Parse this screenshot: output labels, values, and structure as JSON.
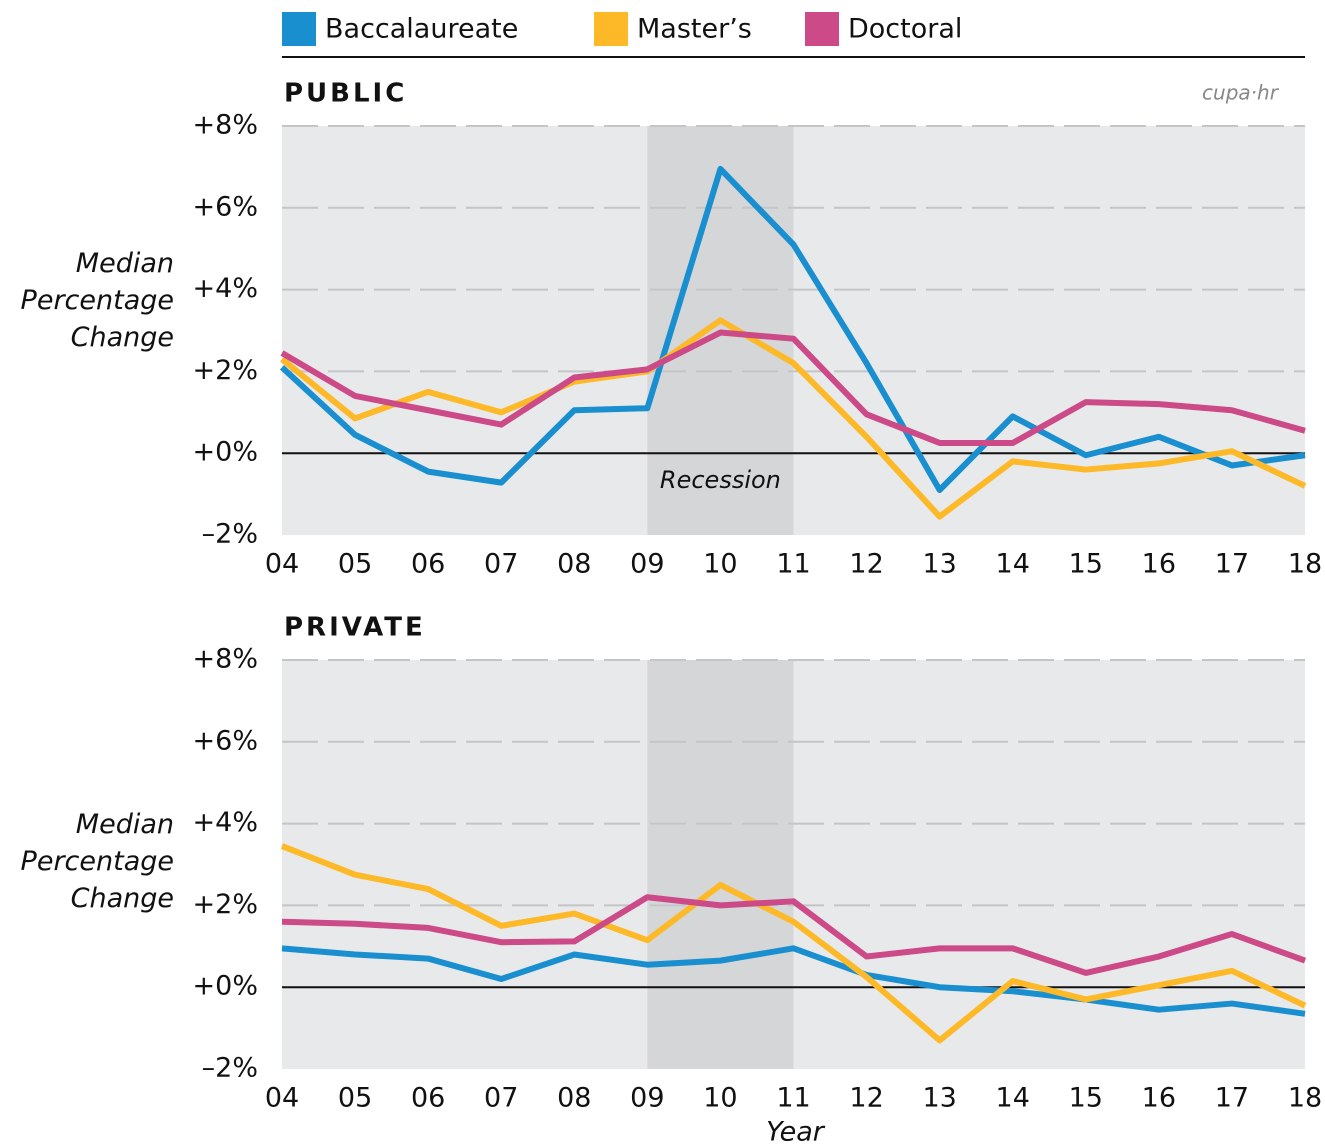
{
  "logo": "cupa·hr",
  "chart_data": [
    {
      "type": "line",
      "title": "PUBLIC",
      "ylabel": "Median Percentage Change",
      "categories": [
        "04",
        "05",
        "06",
        "07",
        "08",
        "09",
        "10",
        "11",
        "12",
        "13",
        "14",
        "15",
        "16",
        "17",
        "18"
      ],
      "shade": {
        "from": "09",
        "to": "11",
        "label": "Recession"
      },
      "series": [
        {
          "name": "Baccalaureate",
          "color": "#1a8fd0",
          "values": [
            2.1,
            0.45,
            -0.45,
            -0.72,
            1.05,
            1.1,
            6.95,
            5.1,
            2.2,
            -0.9,
            0.9,
            -0.05,
            0.4,
            -0.3,
            -0.05
          ]
        },
        {
          "name": "Master’s",
          "color": "#fdb927",
          "values": [
            2.3,
            0.85,
            1.5,
            1.0,
            1.75,
            2.0,
            3.25,
            2.2,
            0.4,
            -1.55,
            -0.2,
            -0.4,
            -0.25,
            0.05,
            -0.8
          ]
        },
        {
          "name": "Doctoral",
          "color": "#cc4a87",
          "values": [
            2.45,
            1.4,
            1.05,
            0.7,
            1.85,
            2.05,
            2.95,
            2.8,
            0.95,
            0.25,
            0.25,
            1.25,
            1.2,
            1.05,
            0.55
          ]
        }
      ],
      "ylim": [
        -2,
        8
      ],
      "yticks": [
        {
          "value": -2,
          "label": "–2%"
        },
        {
          "value": 0,
          "label": "+0%"
        },
        {
          "value": 2,
          "label": "+2%"
        },
        {
          "value": 4,
          "label": "+4%"
        },
        {
          "value": 6,
          "label": "+6%"
        },
        {
          "value": 8,
          "label": "+8%"
        }
      ],
      "grid": true
    },
    {
      "type": "line",
      "title": "PRIVATE",
      "ylabel": "Median Percentage Change",
      "xlabel": "Year",
      "categories": [
        "04",
        "05",
        "06",
        "07",
        "08",
        "09",
        "10",
        "11",
        "12",
        "13",
        "14",
        "15",
        "16",
        "17",
        "18"
      ],
      "shade": {
        "from": "09",
        "to": "11"
      },
      "series": [
        {
          "color": "#1a8fd0",
          "values": [
            0.95,
            0.8,
            0.7,
            0.2,
            0.8,
            0.55,
            0.65,
            0.95,
            0.3,
            0.0,
            -0.1,
            -0.3,
            -0.55,
            -0.4,
            -0.65
          ]
        },
        {
          "color": "#fdb927",
          "values": [
            3.45,
            2.75,
            2.4,
            1.5,
            1.8,
            1.15,
            2.5,
            1.6,
            0.25,
            -1.3,
            0.15,
            -0.3,
            0.05,
            0.4,
            -0.45
          ]
        },
        {
          "color": "#cc4a87",
          "values": [
            1.6,
            1.55,
            1.45,
            1.1,
            1.12,
            2.2,
            2.0,
            2.1,
            0.75,
            0.95,
            0.95,
            0.35,
            0.75,
            1.3,
            0.65
          ]
        }
      ],
      "ylim": [
        -2,
        8
      ],
      "yticks": [
        {
          "value": -2,
          "label": "–2%"
        },
        {
          "value": 0,
          "label": "+0%"
        },
        {
          "value": 2,
          "label": "+2%"
        },
        {
          "value": 4,
          "label": "+4%"
        },
        {
          "value": 6,
          "label": "+6%"
        },
        {
          "value": 8,
          "label": "+8%"
        }
      ],
      "grid": true
    }
  ]
}
